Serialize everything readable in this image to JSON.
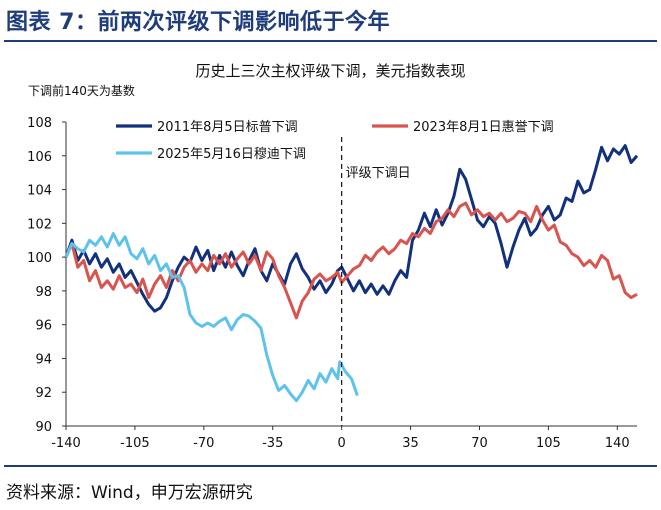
{
  "figure_title": "图表 7：前两次评级下调影响低于今年",
  "source": "资料来源：Wind，申万宏源研究",
  "chart_data": {
    "type": "line",
    "title": "历史上三次主权评级下调，美元指数表现",
    "ylabel": "下调前140天为基数",
    "xlim": [
      -140,
      150
    ],
    "ylim": [
      90,
      108
    ],
    "x_ticks": [
      -140,
      -105,
      -70,
      -35,
      0,
      35,
      70,
      105,
      140
    ],
    "y_ticks": [
      90,
      92,
      94,
      96,
      98,
      100,
      102,
      104,
      106,
      108
    ],
    "grid": false,
    "legend_position": "top",
    "annotation": {
      "x": 0,
      "label": "评级下调日"
    },
    "series": [
      {
        "name": "2011年8月5日标普下调",
        "color": "#12317d",
        "points": [
          [
            -140,
            100
          ],
          [
            -137,
            101
          ],
          [
            -134,
            99.8
          ],
          [
            -131,
            100.4
          ],
          [
            -128,
            99.6
          ],
          [
            -125,
            100.2
          ],
          [
            -122,
            99.4
          ],
          [
            -119,
            99.9
          ],
          [
            -116,
            99.1
          ],
          [
            -113,
            99.6
          ],
          [
            -110,
            98.8
          ],
          [
            -107,
            99.2
          ],
          [
            -104,
            98.5
          ],
          [
            -101,
            97.8
          ],
          [
            -98,
            97.2
          ],
          [
            -95,
            96.8
          ],
          [
            -92,
            97
          ],
          [
            -89,
            97.6
          ],
          [
            -86,
            98.6
          ],
          [
            -83,
            99.4
          ],
          [
            -80,
            100
          ],
          [
            -77,
            99.7
          ],
          [
            -74,
            100.6
          ],
          [
            -71,
            99.8
          ],
          [
            -68,
            100.4
          ],
          [
            -65,
            99.2
          ],
          [
            -62,
            100.1
          ],
          [
            -59,
            99.4
          ],
          [
            -56,
            100.3
          ],
          [
            -53,
            99.5
          ],
          [
            -50,
            98.9
          ],
          [
            -47,
            99.8
          ],
          [
            -44,
            100.5
          ],
          [
            -41,
            99.2
          ],
          [
            -38,
            98.6
          ],
          [
            -35,
            99.6
          ],
          [
            -32,
            99
          ],
          [
            -29,
            98.4
          ],
          [
            -26,
            99.6
          ],
          [
            -23,
            100.2
          ],
          [
            -20,
            99.3
          ],
          [
            -17,
            98.8
          ],
          [
            -14,
            98.1
          ],
          [
            -11,
            98.6
          ],
          [
            -8,
            97.9
          ],
          [
            -5,
            98.4
          ],
          [
            -2,
            99.2
          ],
          [
            0,
            99.4
          ],
          [
            3,
            98.7
          ],
          [
            6,
            98
          ],
          [
            9,
            98.6
          ],
          [
            12,
            97.9
          ],
          [
            15,
            98.4
          ],
          [
            18,
            97.8
          ],
          [
            21,
            98.3
          ],
          [
            24,
            97.8
          ],
          [
            27,
            98.6
          ],
          [
            30,
            99.2
          ],
          [
            33,
            98.8
          ],
          [
            36,
            101
          ],
          [
            39,
            101.6
          ],
          [
            42,
            102.6
          ],
          [
            45,
            101.8
          ],
          [
            48,
            102.8
          ],
          [
            51,
            101.9
          ],
          [
            54,
            102.6
          ],
          [
            57,
            103.6
          ],
          [
            60,
            105.2
          ],
          [
            63,
            104.6
          ],
          [
            66,
            103.4
          ],
          [
            69,
            102.2
          ],
          [
            72,
            101.8
          ],
          [
            75,
            102.4
          ],
          [
            78,
            102
          ],
          [
            81,
            100.8
          ],
          [
            84,
            99.4
          ],
          [
            87,
            100.6
          ],
          [
            90,
            101.6
          ],
          [
            93,
            102.3
          ],
          [
            96,
            101.3
          ],
          [
            99,
            101.7
          ],
          [
            102,
            102.5
          ],
          [
            105,
            103
          ],
          [
            108,
            102.2
          ],
          [
            111,
            102.5
          ],
          [
            114,
            103.5
          ],
          [
            117,
            103.3
          ],
          [
            120,
            104.5
          ],
          [
            123,
            103.8
          ],
          [
            126,
            104
          ],
          [
            129,
            105.2
          ],
          [
            132,
            106.5
          ],
          [
            135,
            105.7
          ],
          [
            138,
            106.4
          ],
          [
            141,
            106.1
          ],
          [
            144,
            106.6
          ],
          [
            147,
            105.6
          ],
          [
            150,
            106
          ]
        ]
      },
      {
        "name": "2023年8月1日惠誉下调",
        "color": "#d9534f",
        "points": [
          [
            -140,
            100
          ],
          [
            -137,
            100.8
          ],
          [
            -134,
            99.4
          ],
          [
            -131,
            99.8
          ],
          [
            -128,
            98.6
          ],
          [
            -125,
            99.2
          ],
          [
            -122,
            98.2
          ],
          [
            -119,
            98.6
          ],
          [
            -116,
            98.1
          ],
          [
            -113,
            98.9
          ],
          [
            -110,
            98.2
          ],
          [
            -107,
            98.4
          ],
          [
            -104,
            97.9
          ],
          [
            -101,
            98.7
          ],
          [
            -98,
            97.6
          ],
          [
            -95,
            98.4
          ],
          [
            -92,
            98.9
          ],
          [
            -89,
            98.2
          ],
          [
            -86,
            99.2
          ],
          [
            -83,
            98.6
          ],
          [
            -80,
            99.4
          ],
          [
            -77,
            99.8
          ],
          [
            -74,
            99.1
          ],
          [
            -71,
            99.6
          ],
          [
            -68,
            99.2
          ],
          [
            -65,
            100.1
          ],
          [
            -62,
            99.6
          ],
          [
            -59,
            100.2
          ],
          [
            -56,
            99.4
          ],
          [
            -53,
            99.9
          ],
          [
            -50,
            100.3
          ],
          [
            -47,
            99.6
          ],
          [
            -44,
            100.1
          ],
          [
            -41,
            99.2
          ],
          [
            -38,
            100.3
          ],
          [
            -35,
            99.9
          ],
          [
            -32,
            98.9
          ],
          [
            -29,
            98.2
          ],
          [
            -26,
            97.3
          ],
          [
            -23,
            96.4
          ],
          [
            -20,
            97.4
          ],
          [
            -17,
            97.9
          ],
          [
            -14,
            98.7
          ],
          [
            -11,
            99
          ],
          [
            -8,
            98.6
          ],
          [
            -5,
            98.8
          ],
          [
            -2,
            99.1
          ],
          [
            0,
            98.5
          ],
          [
            3,
            98.9
          ],
          [
            6,
            99.3
          ],
          [
            9,
            99.5
          ],
          [
            12,
            100.1
          ],
          [
            15,
            99.8
          ],
          [
            18,
            100.3
          ],
          [
            21,
            100.6
          ],
          [
            24,
            100.2
          ],
          [
            27,
            100.5
          ],
          [
            30,
            101
          ],
          [
            33,
            100.8
          ],
          [
            36,
            101.4
          ],
          [
            39,
            101.2
          ],
          [
            42,
            101.7
          ],
          [
            45,
            101.4
          ],
          [
            48,
            102.1
          ],
          [
            51,
            102.3
          ],
          [
            54,
            102.8
          ],
          [
            57,
            102.4
          ],
          [
            60,
            103
          ],
          [
            63,
            103.2
          ],
          [
            66,
            102.5
          ],
          [
            69,
            102.8
          ],
          [
            72,
            102.4
          ],
          [
            75,
            102.6
          ],
          [
            78,
            102.2
          ],
          [
            81,
            102.6
          ],
          [
            84,
            102.1
          ],
          [
            87,
            102.3
          ],
          [
            90,
            102.7
          ],
          [
            93,
            102.6
          ],
          [
            96,
            102.1
          ],
          [
            99,
            103
          ],
          [
            102,
            102.2
          ],
          [
            105,
            101.6
          ],
          [
            108,
            101.9
          ],
          [
            111,
            100.9
          ],
          [
            114,
            100.7
          ],
          [
            117,
            100.2
          ],
          [
            120,
            100
          ],
          [
            123,
            99.5
          ],
          [
            126,
            99.8
          ],
          [
            129,
            99.4
          ],
          [
            132,
            100.1
          ],
          [
            135,
            99.8
          ],
          [
            138,
            98.7
          ],
          [
            141,
            98.9
          ],
          [
            144,
            97.9
          ],
          [
            147,
            97.6
          ],
          [
            150,
            97.8
          ]
        ]
      },
      {
        "name": "2025年5月16日穆迪下调",
        "color": "#5ec3ec",
        "points": [
          [
            -140,
            100
          ],
          [
            -137,
            100.8
          ],
          [
            -134,
            100.5
          ],
          [
            -131,
            100.3
          ],
          [
            -128,
            101
          ],
          [
            -125,
            100.7
          ],
          [
            -122,
            101.2
          ],
          [
            -119,
            100.6
          ],
          [
            -116,
            101.4
          ],
          [
            -113,
            100.7
          ],
          [
            -110,
            101.2
          ],
          [
            -107,
            100.2
          ],
          [
            -104,
            99.9
          ],
          [
            -101,
            100.5
          ],
          [
            -98,
            99.6
          ],
          [
            -95,
            100.1
          ],
          [
            -92,
            99.2
          ],
          [
            -89,
            99.6
          ],
          [
            -86,
            98.8
          ],
          [
            -83,
            98.9
          ],
          [
            -80,
            98.2
          ],
          [
            -77,
            96.6
          ],
          [
            -74,
            96.1
          ],
          [
            -71,
            95.9
          ],
          [
            -68,
            96.1
          ],
          [
            -65,
            95.9
          ],
          [
            -62,
            96.2
          ],
          [
            -59,
            96.4
          ],
          [
            -56,
            95.7
          ],
          [
            -53,
            96.3
          ],
          [
            -50,
            96.6
          ],
          [
            -47,
            96.5
          ],
          [
            -44,
            96.2
          ],
          [
            -41,
            95.8
          ],
          [
            -38,
            94.2
          ],
          [
            -35,
            93
          ],
          [
            -32,
            92.1
          ],
          [
            -29,
            92.4
          ],
          [
            -26,
            91.9
          ],
          [
            -23,
            91.5
          ],
          [
            -20,
            92
          ],
          [
            -17,
            92.7
          ],
          [
            -14,
            92.2
          ],
          [
            -11,
            93.1
          ],
          [
            -8,
            92.6
          ],
          [
            -5,
            93.4
          ],
          [
            -2,
            92.8
          ],
          [
            -1,
            93.8
          ],
          [
            0,
            93.6
          ],
          [
            2,
            93.2
          ],
          [
            5,
            92.8
          ],
          [
            8,
            91.8
          ]
        ]
      }
    ]
  }
}
